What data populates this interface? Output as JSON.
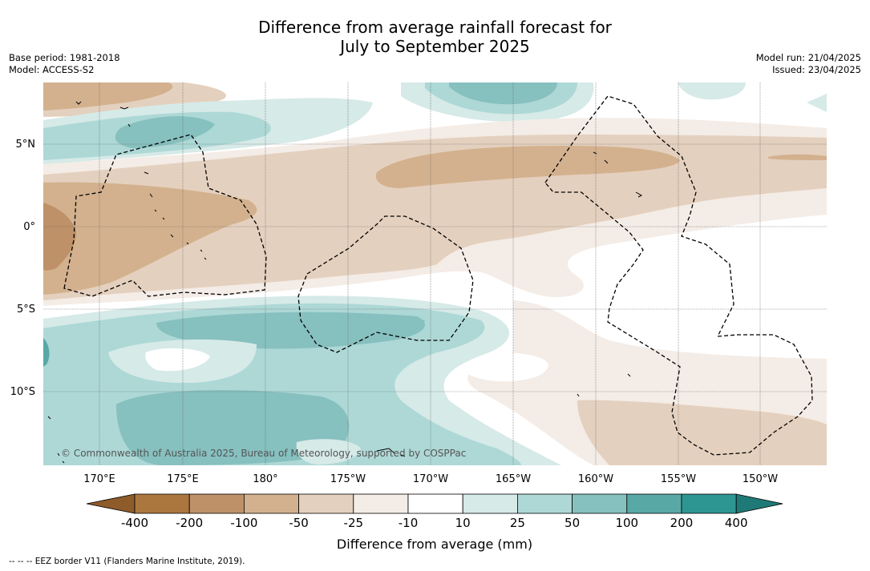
{
  "title_line1": "Difference from average rainfall forecast for",
  "title_line2": "July to September 2025",
  "meta_left": [
    "Base period: 1981-2018",
    "Model: ACCESS-S2"
  ],
  "meta_right": [
    "Model run: 21/04/2025",
    "Issued: 23/04/2025"
  ],
  "copyright": "© Commonwealth of Australia 2025, Bureau of Meteorology, supported by COSPPac",
  "lon_labels": [
    "170°E",
    "175°E",
    "180°",
    "175°W",
    "170°W",
    "165°W",
    "160°W",
    "155°W",
    "150°W"
  ],
  "lat_labels": [
    "5°N",
    "0°",
    "5°S",
    "10°S"
  ],
  "colorbar": {
    "tick_labels": [
      "-400",
      "-200",
      "-100",
      "-50",
      "-25",
      "-10",
      "10",
      "25",
      "50",
      "100",
      "200",
      "400"
    ],
    "colors": [
      "#8e5b2b",
      "#ab773e",
      "#bf9168",
      "#d3b18e",
      "#e4d0be",
      "#f4ece6",
      "#ffffff",
      "#d6eae8",
      "#add8d6",
      "#86c0bf",
      "#58a8a6",
      "#2e9692",
      "#1f7a77"
    ],
    "label": "Difference from average (mm)"
  },
  "footer": "--  --  -- EEZ border V11 (Flanders Marine Institute, 2019)."
}
